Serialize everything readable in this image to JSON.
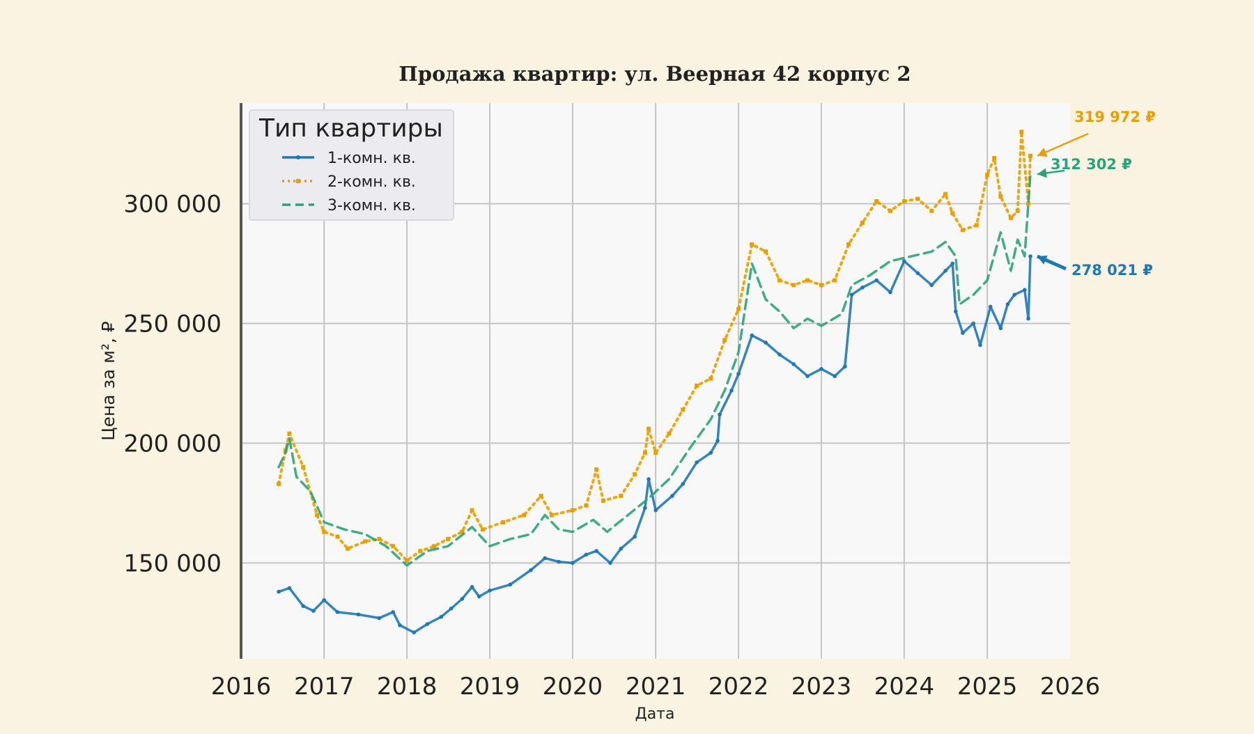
{
  "chart_data": {
    "type": "line",
    "title": "Продажа квартир: ул. Веерная 42 корпус 2",
    "xlabel": "Дата",
    "ylabel": "Цена за м², ₽",
    "xlim": [
      "2016-01-01",
      "2026-01-01"
    ],
    "ylim": [
      110000,
      342000
    ],
    "x_ticks": [
      "2016",
      "2017",
      "2018",
      "2019",
      "2020",
      "2021",
      "2022",
      "2023",
      "2024",
      "2025",
      "2026"
    ],
    "y_ticks": [
      150000,
      200000,
      250000,
      300000
    ],
    "y_tick_labels": [
      "150 000",
      "200 000",
      "250 000",
      "300 000"
    ],
    "grid": true,
    "legend": {
      "title": "Тип квартиры",
      "placement": "top-left"
    },
    "series": [
      {
        "name": "1-комн. кв.",
        "color": "#1f77b4",
        "style": "solid",
        "marker": "dot",
        "last_value_label": "278 021 ₽",
        "points": [
          [
            "2016-06-15",
            138000
          ],
          [
            "2016-08-01",
            139500
          ],
          [
            "2016-10-01",
            132000
          ],
          [
            "2016-11-15",
            130000
          ],
          [
            "2017-01-01",
            134500
          ],
          [
            "2017-03-01",
            129500
          ],
          [
            "2017-06-01",
            128500
          ],
          [
            "2017-09-01",
            127000
          ],
          [
            "2017-11-01",
            129500
          ],
          [
            "2017-12-01",
            124000
          ],
          [
            "2018-02-01",
            121000
          ],
          [
            "2018-04-01",
            124500
          ],
          [
            "2018-06-01",
            127500
          ],
          [
            "2018-07-15",
            131000
          ],
          [
            "2018-09-01",
            135000
          ],
          [
            "2018-10-15",
            140000
          ],
          [
            "2018-11-15",
            136000
          ],
          [
            "2019-01-01",
            138500
          ],
          [
            "2019-04-01",
            141000
          ],
          [
            "2019-07-01",
            147000
          ],
          [
            "2019-09-01",
            152000
          ],
          [
            "2019-11-01",
            150500
          ],
          [
            "2020-01-01",
            150000
          ],
          [
            "2020-03-01",
            153500
          ],
          [
            "2020-04-15",
            155000
          ],
          [
            "2020-06-15",
            150000
          ],
          [
            "2020-08-01",
            156000
          ],
          [
            "2020-10-01",
            161000
          ],
          [
            "2020-11-15",
            173000
          ],
          [
            "2020-12-01",
            185000
          ],
          [
            "2021-01-01",
            172000
          ],
          [
            "2021-03-15",
            178000
          ],
          [
            "2021-05-01",
            183000
          ],
          [
            "2021-07-01",
            192000
          ],
          [
            "2021-09-01",
            196000
          ],
          [
            "2021-10-01",
            201000
          ],
          [
            "2021-10-10",
            212000
          ],
          [
            "2021-12-01",
            222000
          ],
          [
            "2022-01-01",
            229000
          ],
          [
            "2022-03-01",
            245000
          ],
          [
            "2022-05-01",
            242000
          ],
          [
            "2022-07-01",
            237000
          ],
          [
            "2022-09-01",
            233000
          ],
          [
            "2022-11-01",
            228000
          ],
          [
            "2023-01-01",
            231000
          ],
          [
            "2023-03-01",
            228000
          ],
          [
            "2023-04-15",
            232000
          ],
          [
            "2023-05-15",
            262000
          ],
          [
            "2023-07-01",
            265000
          ],
          [
            "2023-09-01",
            268000
          ],
          [
            "2023-11-01",
            263000
          ],
          [
            "2024-01-01",
            276000
          ],
          [
            "2024-03-01",
            271000
          ],
          [
            "2024-05-01",
            266000
          ],
          [
            "2024-07-01",
            272000
          ],
          [
            "2024-08-01",
            275000
          ],
          [
            "2024-08-15",
            255000
          ],
          [
            "2024-09-15",
            246000
          ],
          [
            "2024-11-01",
            250000
          ],
          [
            "2024-12-01",
            241000
          ],
          [
            "2025-01-15",
            257000
          ],
          [
            "2025-03-01",
            248000
          ],
          [
            "2025-04-01",
            258000
          ],
          [
            "2025-05-01",
            262000
          ],
          [
            "2025-06-15",
            264000
          ],
          [
            "2025-07-01",
            252000
          ],
          [
            "2025-07-10",
            278021
          ]
        ]
      },
      {
        "name": "2-комн. кв.",
        "color": "#e69f00",
        "style": "dotted",
        "marker": "square",
        "last_value_label": "319 972 ₽",
        "points": [
          [
            "2016-06-15",
            183000
          ],
          [
            "2016-07-15",
            197000
          ],
          [
            "2016-08-01",
            204000
          ],
          [
            "2016-10-01",
            190000
          ],
          [
            "2016-12-01",
            170000
          ],
          [
            "2017-01-01",
            163000
          ],
          [
            "2017-03-01",
            161000
          ],
          [
            "2017-04-15",
            156000
          ],
          [
            "2017-07-01",
            159000
          ],
          [
            "2017-09-01",
            160000
          ],
          [
            "2017-11-01",
            157000
          ],
          [
            "2018-01-01",
            151000
          ],
          [
            "2018-03-01",
            155000
          ],
          [
            "2018-05-01",
            157000
          ],
          [
            "2018-07-01",
            160000
          ],
          [
            "2018-09-01",
            163000
          ],
          [
            "2018-10-15",
            172000
          ],
          [
            "2018-12-01",
            164000
          ],
          [
            "2019-03-01",
            167000
          ],
          [
            "2019-06-01",
            170000
          ],
          [
            "2019-08-15",
            178000
          ],
          [
            "2019-10-01",
            170000
          ],
          [
            "2020-01-01",
            172000
          ],
          [
            "2020-03-01",
            174000
          ],
          [
            "2020-04-15",
            189000
          ],
          [
            "2020-05-15",
            176000
          ],
          [
            "2020-08-01",
            178000
          ],
          [
            "2020-10-01",
            187000
          ],
          [
            "2020-11-15",
            196000
          ],
          [
            "2020-12-01",
            206000
          ],
          [
            "2021-01-01",
            196000
          ],
          [
            "2021-03-01",
            204000
          ],
          [
            "2021-05-01",
            214000
          ],
          [
            "2021-07-01",
            224000
          ],
          [
            "2021-09-01",
            227000
          ],
          [
            "2021-11-01",
            243000
          ],
          [
            "2022-01-01",
            256000
          ],
          [
            "2022-03-01",
            283000
          ],
          [
            "2022-05-01",
            280000
          ],
          [
            "2022-07-01",
            268000
          ],
          [
            "2022-09-01",
            266000
          ],
          [
            "2022-11-01",
            268000
          ],
          [
            "2023-01-01",
            266000
          ],
          [
            "2023-03-01",
            268000
          ],
          [
            "2023-05-01",
            283000
          ],
          [
            "2023-07-01",
            292000
          ],
          [
            "2023-09-01",
            301000
          ],
          [
            "2023-11-01",
            297000
          ],
          [
            "2024-01-01",
            301000
          ],
          [
            "2024-03-01",
            302000
          ],
          [
            "2024-05-01",
            297000
          ],
          [
            "2024-07-01",
            304000
          ],
          [
            "2024-08-01",
            296000
          ],
          [
            "2024-09-15",
            289000
          ],
          [
            "2024-11-15",
            291000
          ],
          [
            "2025-01-01",
            312000
          ],
          [
            "2025-02-01",
            319000
          ],
          [
            "2025-03-01",
            303000
          ],
          [
            "2025-04-15",
            294000
          ],
          [
            "2025-05-15",
            297000
          ],
          [
            "2025-06-01",
            330000
          ],
          [
            "2025-07-01",
            300000
          ],
          [
            "2025-07-10",
            319972
          ]
        ]
      },
      {
        "name": "3-комн. кв.",
        "color": "#2ca27a",
        "style": "dashed",
        "marker": "none",
        "last_value_label": "312 302 ₽",
        "points": [
          [
            "2016-06-15",
            190000
          ],
          [
            "2016-07-15",
            196000
          ],
          [
            "2016-08-01",
            202000
          ],
          [
            "2016-09-01",
            186000
          ],
          [
            "2016-11-01",
            180000
          ],
          [
            "2017-01-01",
            167000
          ],
          [
            "2017-04-01",
            164000
          ],
          [
            "2017-07-01",
            162000
          ],
          [
            "2017-10-01",
            157000
          ],
          [
            "2018-01-01",
            149000
          ],
          [
            "2018-04-01",
            155000
          ],
          [
            "2018-07-01",
            157000
          ],
          [
            "2018-10-15",
            165000
          ],
          [
            "2019-01-01",
            157000
          ],
          [
            "2019-04-01",
            160000
          ],
          [
            "2019-07-01",
            162000
          ],
          [
            "2019-09-01",
            170000
          ],
          [
            "2019-11-01",
            164000
          ],
          [
            "2020-01-01",
            163000
          ],
          [
            "2020-04-01",
            168000
          ],
          [
            "2020-06-01",
            163000
          ],
          [
            "2020-09-01",
            170000
          ],
          [
            "2020-12-01",
            177000
          ],
          [
            "2021-03-01",
            185000
          ],
          [
            "2021-06-01",
            198000
          ],
          [
            "2021-09-01",
            210000
          ],
          [
            "2021-11-01",
            222000
          ],
          [
            "2022-01-01",
            238000
          ],
          [
            "2022-03-01",
            275000
          ],
          [
            "2022-05-01",
            260000
          ],
          [
            "2022-07-01",
            255000
          ],
          [
            "2022-09-01",
            248000
          ],
          [
            "2022-11-01",
            252000
          ],
          [
            "2023-01-01",
            249000
          ],
          [
            "2023-04-01",
            254000
          ],
          [
            "2023-05-15",
            266000
          ],
          [
            "2023-08-01",
            270000
          ],
          [
            "2023-11-01",
            276000
          ],
          [
            "2024-02-01",
            278000
          ],
          [
            "2024-05-01",
            280000
          ],
          [
            "2024-07-01",
            284000
          ],
          [
            "2024-08-15",
            278000
          ],
          [
            "2024-09-01",
            258000
          ],
          [
            "2024-11-01",
            262000
          ],
          [
            "2025-01-01",
            268000
          ],
          [
            "2025-03-01",
            288000
          ],
          [
            "2025-04-15",
            272000
          ],
          [
            "2025-05-15",
            285000
          ],
          [
            "2025-06-15",
            278000
          ],
          [
            "2025-07-10",
            312302
          ]
        ]
      }
    ]
  }
}
